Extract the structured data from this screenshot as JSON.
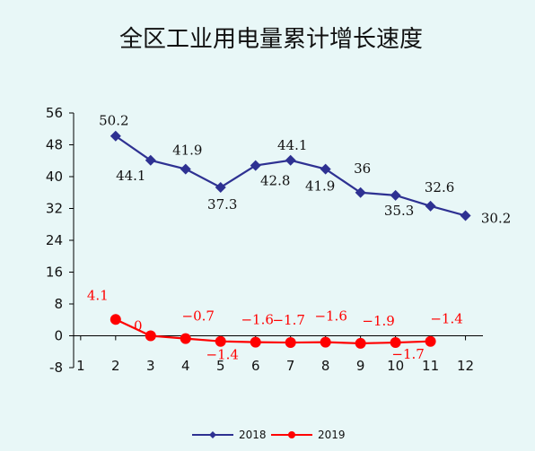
{
  "chart_data": {
    "type": "line",
    "title": "全区工业用电量累计增长速度",
    "xlabel": "",
    "ylabel": "",
    "x": [
      "1",
      "2",
      "3",
      "4",
      "5",
      "6",
      "7",
      "8",
      "9",
      "10",
      "11",
      "12"
    ],
    "y_ticks": [
      "56",
      "48",
      "40",
      "32",
      "24",
      "16",
      "8",
      "0",
      "-8"
    ],
    "ylim": [
      -8,
      56
    ],
    "grid": false,
    "legend_position": "bottom",
    "series": [
      {
        "name": "2018",
        "color": "#2e3192",
        "marker": "diamond",
        "x": [
          2,
          3,
          4,
          5,
          6,
          7,
          8,
          9,
          10,
          11,
          12
        ],
        "values": [
          50.2,
          44.1,
          41.9,
          37.3,
          42.8,
          44.1,
          41.9,
          36,
          35.3,
          32.6,
          30.2
        ],
        "labels": [
          "50.2",
          "44.1",
          "41.9",
          "37.3",
          "42.8",
          "44.1",
          "41.9",
          "36",
          "35.3",
          "32.6",
          "30.2"
        ]
      },
      {
        "name": "2019",
        "color": "#ff0000",
        "marker": "circle",
        "x": [
          2,
          3,
          4,
          5,
          6,
          7,
          8,
          9,
          10,
          11
        ],
        "values": [
          4.1,
          0,
          -0.7,
          -1.4,
          -1.6,
          -1.7,
          -1.6,
          -1.9,
          -1.7,
          -1.4
        ],
        "labels": [
          "4.1",
          "0",
          "−0.7",
          "−1.4",
          "−1.6",
          "−1.7",
          "−1.6",
          "−1.9",
          "−1.7",
          "−1.4"
        ]
      }
    ]
  }
}
